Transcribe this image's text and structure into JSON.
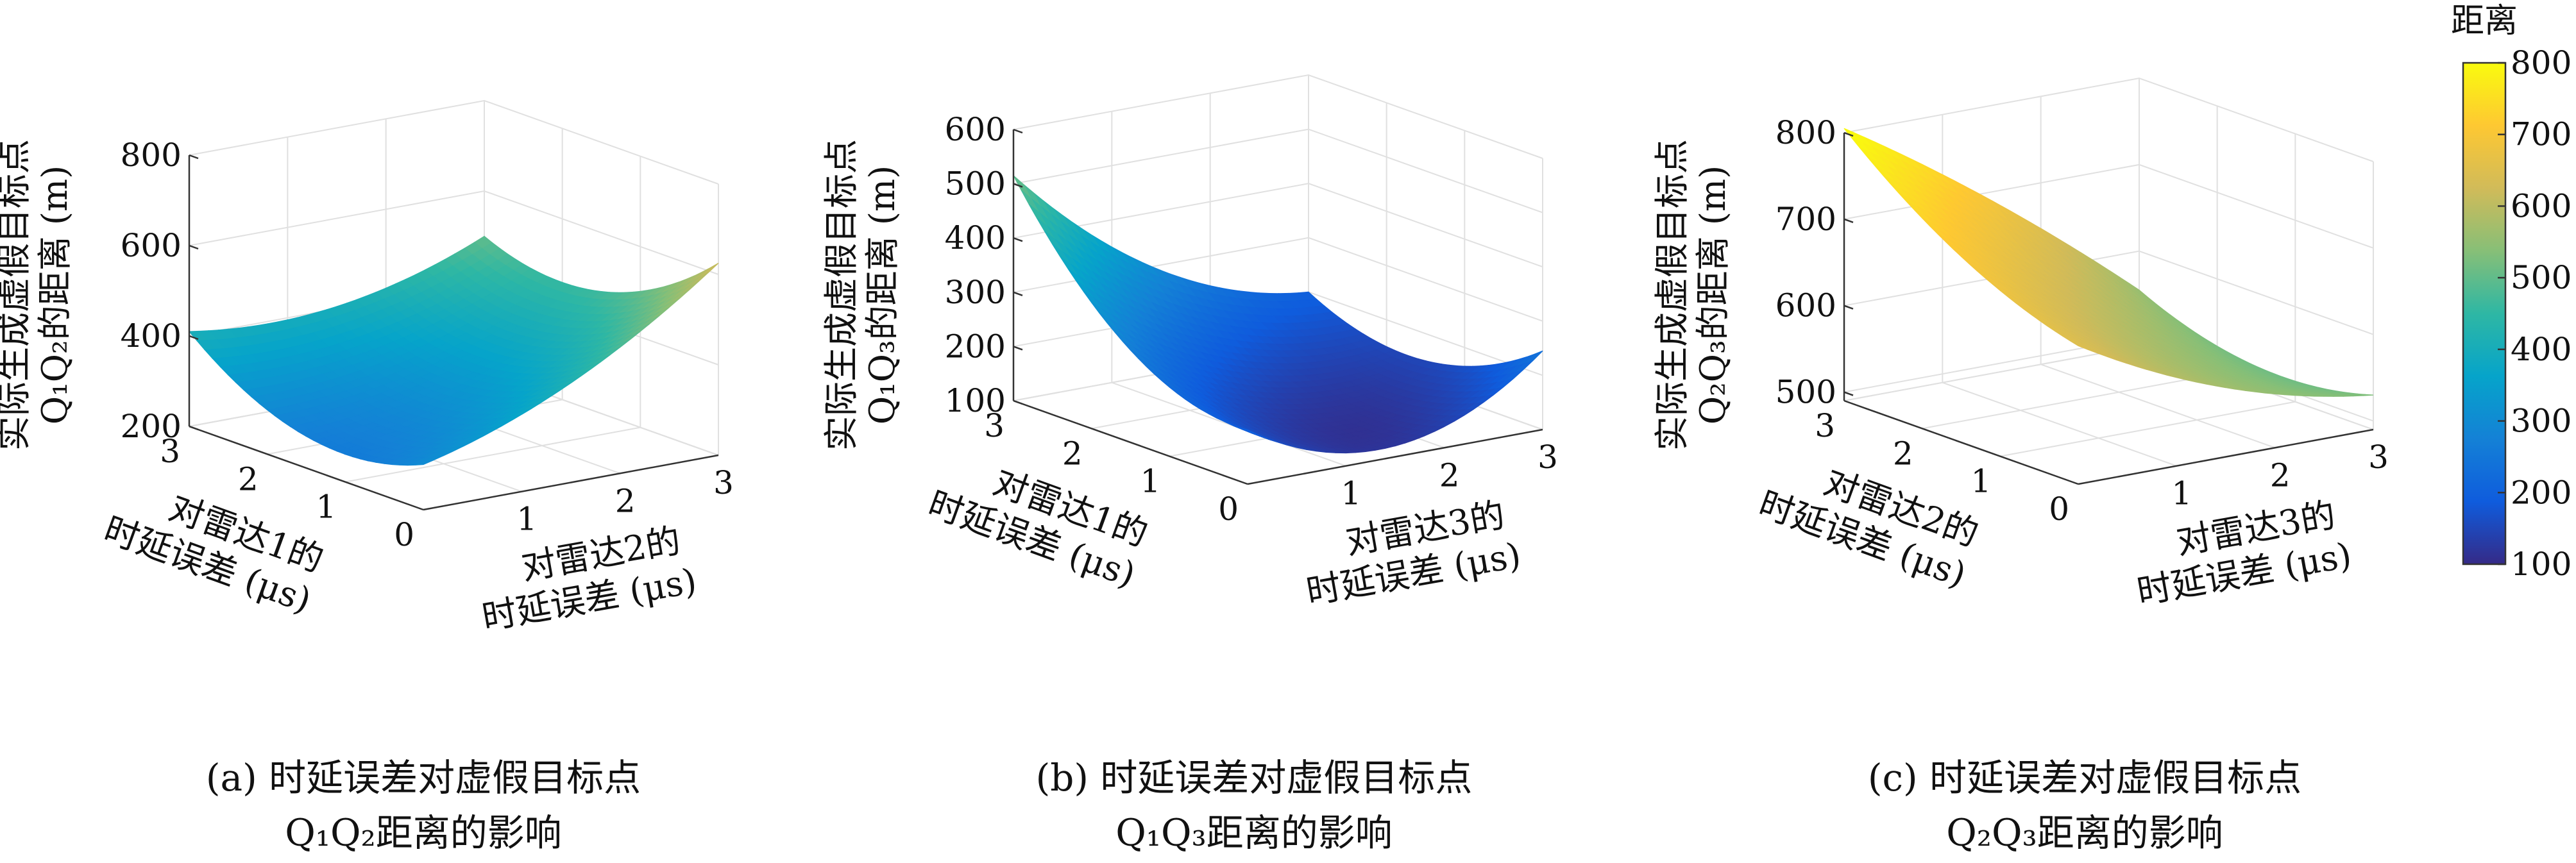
{
  "chart_data": [
    {
      "type": "surface",
      "panel": "a",
      "caption_line1": "(a) 时延误差对虚假目标点",
      "caption_line2": "Q₁Q₂距离的影响",
      "zlabel_line1": "实际生成虚假目标点",
      "zlabel_line2": "Q₁Q₂的距离 (m)",
      "xlabel_line1": "对雷达1的",
      "xlabel_line2": "时延误差 (μs)",
      "ylabel_line1": "对雷达2的",
      "ylabel_line2": "时延误差 (μs)",
      "x_ticks": [
        "0",
        "1",
        "2",
        "3"
      ],
      "y_ticks": [
        "1",
        "2",
        "3"
      ],
      "z_ticks": [
        "200",
        "400",
        "600",
        "800"
      ],
      "xlim": [
        0,
        3
      ],
      "ylim": [
        0,
        3
      ],
      "zlim": [
        200,
        800
      ],
      "x": [
        0,
        1.5,
        3
      ],
      "y": [
        0,
        1.5,
        3
      ],
      "z": [
        [
          300,
          420,
          625
        ],
        [
          270,
          330,
          470
        ],
        [
          410,
          405,
          500
        ]
      ]
    },
    {
      "type": "surface",
      "panel": "b",
      "caption_line1": "(b) 时延误差对虚假目标点",
      "caption_line2": "Q₁Q₃距离的影响",
      "zlabel_line1": "实际生成虚假目标点",
      "zlabel_line2": "Q₁Q₃的距离 (m)",
      "xlabel_line1": "对雷达1的",
      "xlabel_line2": "时延误差 (μs)",
      "ylabel_line1": "对雷达3的",
      "ylabel_line2": "时延误差 (μs)",
      "x_ticks": [
        "0",
        "1",
        "2",
        "3"
      ],
      "y_ticks": [
        "1",
        "2",
        "3"
      ],
      "z_ticks": [
        "100",
        "200",
        "300",
        "400",
        "500",
        "600"
      ],
      "xlim": [
        0,
        3
      ],
      "ylim": [
        0,
        3
      ],
      "zlim": [
        100,
        600
      ],
      "x": [
        0,
        1.5,
        3
      ],
      "y": [
        0,
        1.5,
        3
      ],
      "z": [
        [
          200,
          120,
          245
        ],
        [
          270,
          140,
          150
        ],
        [
          515,
          290,
          200
        ]
      ]
    },
    {
      "type": "surface",
      "panel": "c",
      "caption_line1": "(c) 时延误差对虚假目标点",
      "caption_line2": "Q₂Q₃距离的影响",
      "zlabel_line1": "实际生成虚假目标点",
      "zlabel_line2": "Q₂Q₃的距离 (m)",
      "xlabel_line1": "对雷达2的",
      "xlabel_line2": "时延误差 (μs)",
      "ylabel_line1": "对雷达3的",
      "ylabel_line2": "时延误差 (μs)",
      "x_ticks": [
        "0",
        "1",
        "2",
        "3"
      ],
      "y_ticks": [
        "1",
        "2",
        "3"
      ],
      "z_ticks": [
        "500",
        "600",
        "700",
        "800"
      ],
      "xlim": [
        0,
        3
      ],
      "ylim": [
        0,
        3
      ],
      "zlim": [
        490,
        800
      ],
      "x": [
        0,
        1.5,
        3
      ],
      "y": [
        0,
        1.5,
        3
      ],
      "z": [
        [
          650,
          570,
          530
        ],
        [
          705,
          600,
          515
        ],
        [
          805,
          690,
          555
        ]
      ]
    }
  ],
  "colorbar": {
    "title": "距离",
    "ticks": [
      "100",
      "200",
      "300",
      "400",
      "500",
      "600",
      "700",
      "800"
    ],
    "range": [
      100,
      800
    ],
    "colormap": "parula",
    "colors": [
      "#352a87",
      "#0f5cdd",
      "#1481d6",
      "#06a4ca",
      "#2eb7a4",
      "#87bf77",
      "#d1bb59",
      "#fec832",
      "#f9fb0e"
    ]
  }
}
